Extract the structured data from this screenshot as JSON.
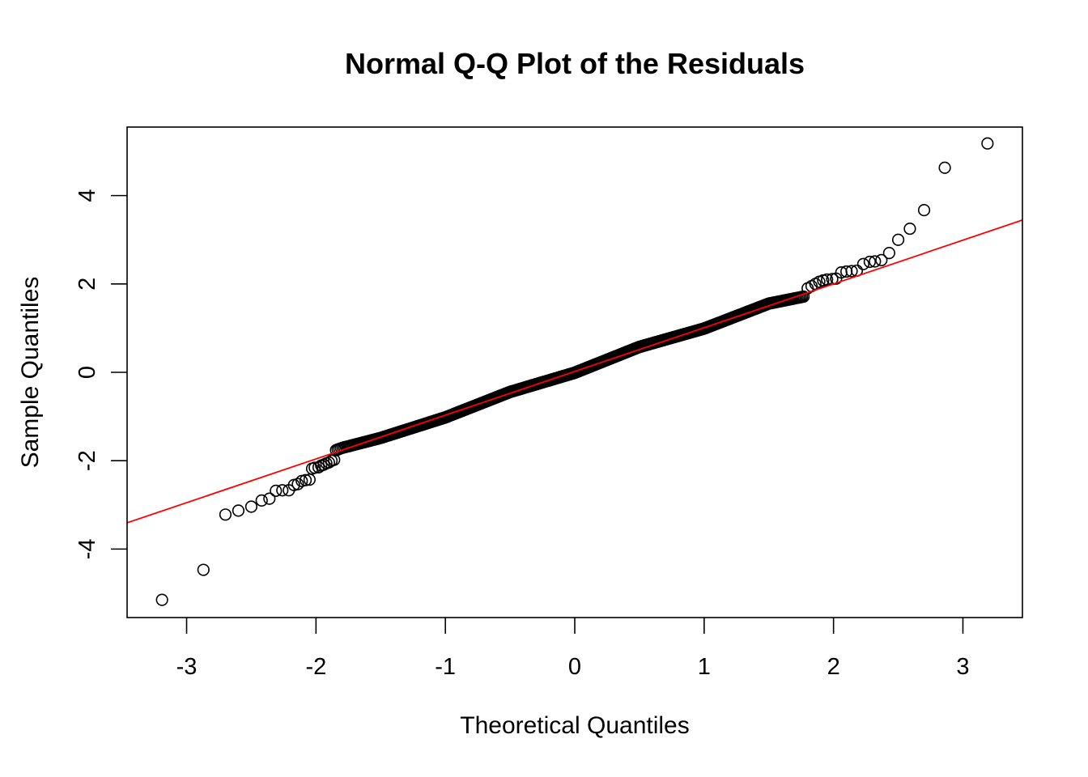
{
  "chart_data": {
    "type": "scatter",
    "title": "Normal Q-Q Plot of the Residuals",
    "xlabel": "Theoretical Quantiles",
    "ylabel": "Sample Quantiles",
    "xlim": [
      -3.46,
      3.46
    ],
    "ylim": [
      -5.55,
      5.55
    ],
    "x_ticks": [
      -3,
      -2,
      -1,
      0,
      1,
      2,
      3
    ],
    "y_ticks": [
      -4,
      -2,
      0,
      2,
      4
    ],
    "x_tick_labels": [
      "-3",
      "-2",
      "-1",
      "0",
      "1",
      "2",
      "3"
    ],
    "y_tick_labels": [
      "-4",
      "-2",
      "0",
      "2",
      "4"
    ],
    "grid": false,
    "legend": "none",
    "marker": "open-circle",
    "point_color": "#000000",
    "reference_line": {
      "intercept": 0.02,
      "slope": 0.99,
      "color": "#ff0000"
    },
    "sample_size": 1000,
    "body_distortion": {
      "x": [
        -2.2,
        -1.8,
        -1.5,
        -1.0,
        -0.5,
        0.0,
        0.5,
        1.0,
        1.5,
        1.8,
        2.1
      ],
      "dy": [
        0.0,
        0.05,
        -0.02,
        -0.05,
        0.03,
        -0.03,
        0.06,
        -0.02,
        0.05,
        -0.07,
        0.0
      ]
    },
    "tail_points": [
      {
        "x": -3.19,
        "y": -5.15
      },
      {
        "x": -2.87,
        "y": -4.47
      },
      {
        "x": -2.7,
        "y": -3.22
      },
      {
        "x": -2.6,
        "y": -3.13
      },
      {
        "x": -2.5,
        "y": -3.04
      },
      {
        "x": -2.42,
        "y": -2.9
      },
      {
        "x": -2.36,
        "y": -2.86
      },
      {
        "x": -2.31,
        "y": -2.68
      },
      {
        "x": -2.26,
        "y": -2.67
      },
      {
        "x": -2.21,
        "y": -2.67
      },
      {
        "x": -2.17,
        "y": -2.55
      },
      {
        "x": -2.14,
        "y": -2.53
      },
      {
        "x": -2.11,
        "y": -2.46
      },
      {
        "x": -2.08,
        "y": -2.44
      },
      {
        "x": -2.05,
        "y": -2.43
      },
      {
        "x": -2.03,
        "y": -2.18
      },
      {
        "x": -2.01,
        "y": -2.16
      },
      {
        "x": -1.98,
        "y": -2.15
      },
      {
        "x": -1.96,
        "y": -2.11
      },
      {
        "x": -1.94,
        "y": -2.09
      },
      {
        "x": -1.92,
        "y": -2.06
      },
      {
        "x": -1.9,
        "y": -2.04
      },
      {
        "x": -1.88,
        "y": -2.0
      },
      {
        "x": -1.86,
        "y": -1.98
      },
      {
        "x": 1.8,
        "y": 1.9
      },
      {
        "x": 1.83,
        "y": 1.95
      },
      {
        "x": 1.86,
        "y": 2.0
      },
      {
        "x": 1.89,
        "y": 2.05
      },
      {
        "x": 1.92,
        "y": 2.08
      },
      {
        "x": 1.95,
        "y": 2.1
      },
      {
        "x": 1.99,
        "y": 2.11
      },
      {
        "x": 2.02,
        "y": 2.12
      },
      {
        "x": 2.06,
        "y": 2.26
      },
      {
        "x": 2.1,
        "y": 2.28
      },
      {
        "x": 2.14,
        "y": 2.29
      },
      {
        "x": 2.18,
        "y": 2.3
      },
      {
        "x": 2.23,
        "y": 2.45
      },
      {
        "x": 2.28,
        "y": 2.5
      },
      {
        "x": 2.32,
        "y": 2.51
      },
      {
        "x": 2.37,
        "y": 2.54
      },
      {
        "x": 2.43,
        "y": 2.7
      },
      {
        "x": 2.5,
        "y": 3.0
      },
      {
        "x": 2.59,
        "y": 3.25
      },
      {
        "x": 2.7,
        "y": 3.67
      },
      {
        "x": 2.86,
        "y": 4.63
      },
      {
        "x": 3.19,
        "y": 5.18
      }
    ]
  }
}
